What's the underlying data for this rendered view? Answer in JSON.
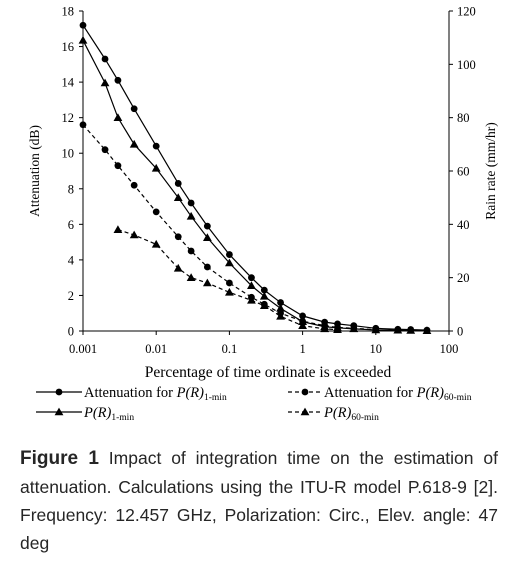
{
  "chart_data": {
    "type": "line",
    "xscale": "log",
    "xlim": [
      0.001,
      100
    ],
    "ylim": [
      0,
      18
    ],
    "y2lim": [
      0,
      120
    ],
    "xlabel": "Percentage of time ordinate is exceeded",
    "ylabel": "Attenuation (dB)",
    "y2label": "Rain rate (mm/hr)",
    "xticks": [
      "0.001",
      "0.01",
      "0.1",
      "1",
      "10",
      "100"
    ],
    "yticks": [
      "0",
      "2",
      "4",
      "6",
      "8",
      "10",
      "12",
      "14",
      "16",
      "18"
    ],
    "y2ticks": [
      "0",
      "20",
      "40",
      "60",
      "80",
      "100",
      "120"
    ],
    "grid": false,
    "legend_position": "bottom",
    "series": [
      {
        "name": "Attenuation for P(R)1-min",
        "legend": {
          "prefix": "Attenuation for ",
          "main": "P(R)",
          "sub": "1-min"
        },
        "axis": "left",
        "line": "solid",
        "marker": "circle",
        "color": "#000000",
        "x": [
          0.001,
          0.002,
          0.003,
          0.005,
          0.01,
          0.02,
          0.03,
          0.05,
          0.1,
          0.2,
          0.3,
          0.5,
          1,
          2,
          3,
          5,
          10,
          20,
          30,
          50
        ],
        "y": [
          17.2,
          15.3,
          14.1,
          12.5,
          10.4,
          8.3,
          7.2,
          5.9,
          4.3,
          3.0,
          2.3,
          1.6,
          0.85,
          0.5,
          0.4,
          0.3,
          0.15,
          0.1,
          0.08,
          0.05
        ]
      },
      {
        "name": "Attenuation for P(R)60-min",
        "legend": {
          "prefix": "Attenuation for ",
          "main": "P(R)",
          "sub": "60-min"
        },
        "axis": "left",
        "line": "dashed",
        "marker": "circle",
        "color": "#000000",
        "x": [
          0.001,
          0.002,
          0.003,
          0.005,
          0.01,
          0.02,
          0.03,
          0.05,
          0.1,
          0.2,
          0.3,
          0.5,
          1,
          2,
          3,
          5,
          10
        ],
        "y": [
          11.6,
          10.2,
          9.3,
          8.2,
          6.7,
          5.3,
          4.5,
          3.6,
          2.7,
          1.9,
          1.5,
          1.0,
          0.55,
          0.3,
          0.2,
          0.15,
          0.08
        ]
      },
      {
        "name": "P(R)1-min",
        "legend": {
          "prefix": "",
          "main": "P(R)",
          "sub": "1-min"
        },
        "axis": "right",
        "line": "solid",
        "marker": "triangle",
        "color": "#000000",
        "x": [
          0.001,
          0.002,
          0.003,
          0.005,
          0.01,
          0.02,
          0.03,
          0.05,
          0.1,
          0.2,
          0.3,
          0.5,
          1,
          2,
          3,
          5,
          10,
          20,
          30,
          50
        ],
        "y": [
          109,
          93,
          80,
          70,
          61,
          50,
          43,
          35,
          25.5,
          17,
          13,
          8.5,
          3.5,
          1.6,
          1.2,
          0.8,
          0.4,
          0.3,
          0.2,
          0.1
        ]
      },
      {
        "name": "P(R)60-min",
        "legend": {
          "prefix": "",
          "main": "P(R)",
          "sub": "60-min"
        },
        "axis": "right",
        "line": "dashed",
        "marker": "triangle",
        "color": "#000000",
        "x": [
          0.003,
          0.005,
          0.01,
          0.02,
          0.03,
          0.05,
          0.1,
          0.2,
          0.3,
          0.5,
          1,
          2,
          3
        ],
        "y": [
          38,
          36,
          32.5,
          23.5,
          20,
          18,
          14.5,
          11.5,
          9.5,
          5.5,
          2,
          0.8,
          0.5
        ]
      }
    ]
  },
  "caption": {
    "label": "Figure 1",
    "text": " Impact of integration time on the estimation of attenuation. Calculations using the ITU-R model P.618-9 [2]. Frequency: 12.457 GHz, Polarization: Circ., Elev. angle: 47 deg"
  }
}
